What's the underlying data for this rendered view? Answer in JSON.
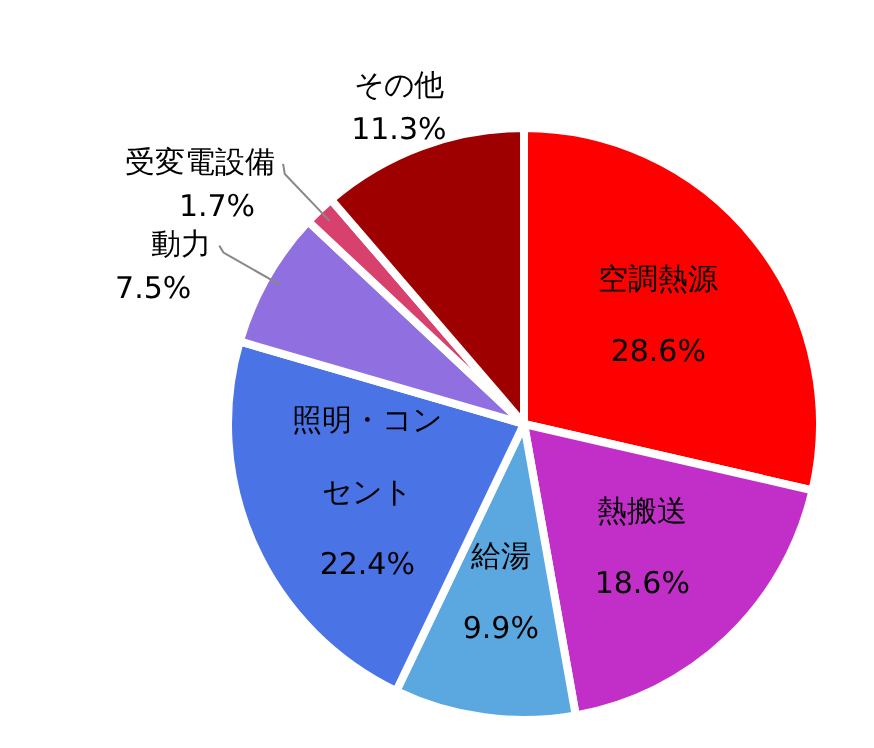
{
  "chart_data": {
    "type": "pie",
    "categories": [
      "空調熱源",
      "熱搬送",
      "給湯",
      "照明・コンセント",
      "動力",
      "受変電設備",
      "その他"
    ],
    "values": [
      28.6,
      18.6,
      9.9,
      22.4,
      7.5,
      1.7,
      11.3
    ],
    "value_labels": [
      "28.6%",
      "18.6%",
      "9.9%",
      "22.4%",
      "7.5%",
      "1.7%",
      "11.3%"
    ],
    "colors": [
      "#ff0000",
      "#c22fc8",
      "#5ba8e0",
      "#4a74e6",
      "#9070e0",
      "#d8406e",
      "#9e0000"
    ],
    "legend": false
  }
}
